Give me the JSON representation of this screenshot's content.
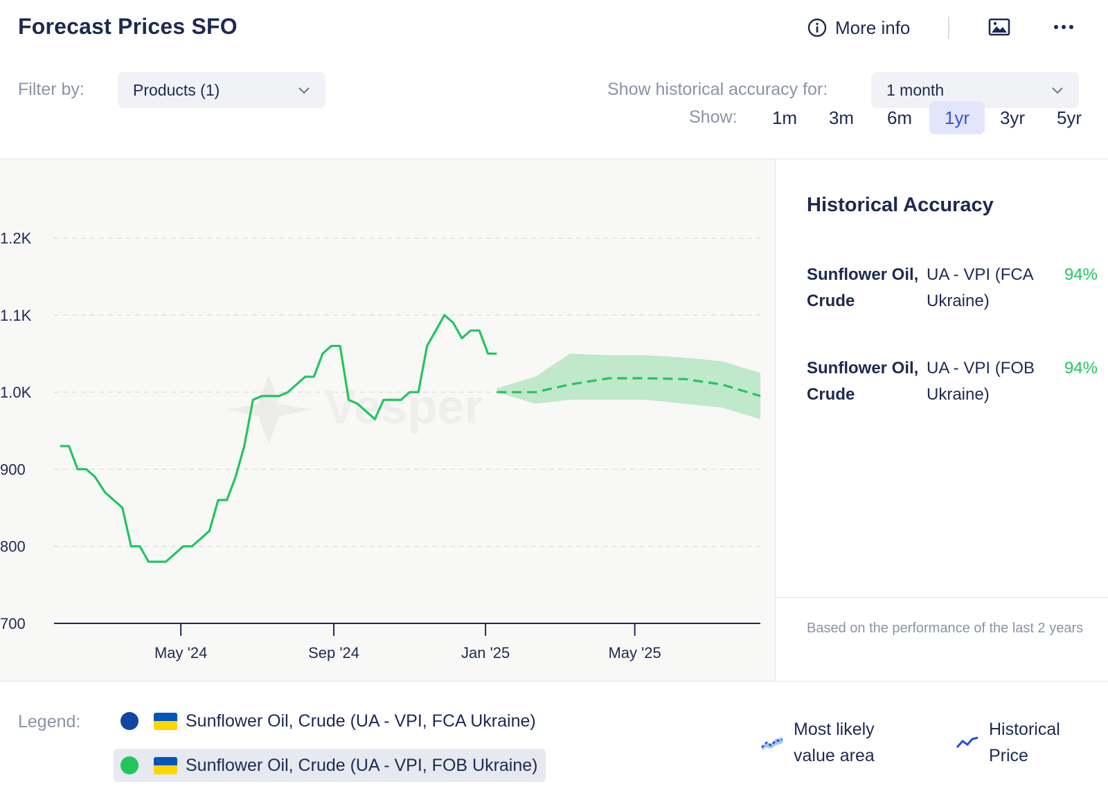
{
  "header": {
    "title": "Forecast Prices SFO",
    "more_info_label": "More info"
  },
  "filter": {
    "label": "Filter by:",
    "value": "Products (1)"
  },
  "accuracy_selector": {
    "label": "Show historical accuracy for:",
    "value": "1 month"
  },
  "range": {
    "label": "Show:",
    "options": [
      "1m",
      "3m",
      "6m",
      "1yr",
      "3yr",
      "5yr"
    ],
    "active": "1yr"
  },
  "side_panel": {
    "title": "Historical Accuracy",
    "rows": [
      {
        "name": "Sunflower Oil, Crude",
        "source": "UA - VPI (FCA Ukraine)",
        "accuracy": "94%"
      },
      {
        "name": "Sunflower Oil, Crude",
        "source": "UA - VPI (FOB Ukraine)",
        "accuracy": "94%"
      }
    ],
    "note": "Based on the performance of the last 2 years"
  },
  "legend": {
    "label": "Legend:",
    "items": [
      {
        "text": "Sunflower Oil, Crude (UA - VPI, FCA Ukraine)",
        "color": "#0f47a1",
        "highlighted": false
      },
      {
        "text": "Sunflower Oil, Crude (UA - VPI, FOB Ukraine)",
        "color": "#22c55e",
        "highlighted": true
      }
    ],
    "keys": {
      "forecast_area": "Most likely value area",
      "historical": "Historical Price"
    }
  },
  "colors": {
    "historical_line": "#22c55e",
    "forecast_band": "#b6e5c2",
    "accent": "#3b4ed8"
  },
  "chart_data": {
    "type": "line",
    "watermark": "Vesper",
    "ylim": [
      700,
      1250
    ],
    "yticks": [
      700,
      800,
      900,
      1000,
      1100,
      1200
    ],
    "ytick_labels": [
      "700",
      "800",
      "900",
      "1.0K",
      "1.1K",
      "1.2K"
    ],
    "xlim": [
      "2024-01-20",
      "2025-08-10"
    ],
    "xticks": [
      "2024-05-01",
      "2024-09-01",
      "2025-01-01",
      "2025-05-01"
    ],
    "xtick_labels": [
      "May '24",
      "Sep '24",
      "Jan '25",
      "May '25"
    ],
    "series": [
      {
        "name": "Sunflower Oil, Crude (UA - VPI, FOB Ukraine)",
        "kind": "historical",
        "x": [
          "2024-01-25",
          "2024-02-01",
          "2024-02-08",
          "2024-02-15",
          "2024-02-22",
          "2024-03-01",
          "2024-03-08",
          "2024-03-15",
          "2024-03-22",
          "2024-03-29",
          "2024-04-05",
          "2024-04-12",
          "2024-04-19",
          "2024-04-26",
          "2024-05-03",
          "2024-05-10",
          "2024-05-17",
          "2024-05-24",
          "2024-05-31",
          "2024-06-07",
          "2024-06-14",
          "2024-06-21",
          "2024-06-28",
          "2024-07-05",
          "2024-07-12",
          "2024-07-19",
          "2024-07-26",
          "2024-08-02",
          "2024-08-09",
          "2024-08-16",
          "2024-08-23",
          "2024-08-30",
          "2024-09-06",
          "2024-09-13",
          "2024-09-20",
          "2024-09-27",
          "2024-10-04",
          "2024-10-11",
          "2024-10-18",
          "2024-10-25",
          "2024-11-01",
          "2024-11-08",
          "2024-11-15",
          "2024-11-22",
          "2024-11-29",
          "2024-12-06",
          "2024-12-13",
          "2024-12-20",
          "2024-12-27",
          "2025-01-03",
          "2025-01-10"
        ],
        "values": [
          930,
          930,
          900,
          900,
          890,
          870,
          860,
          850,
          800,
          800,
          780,
          780,
          780,
          790,
          800,
          800,
          810,
          820,
          860,
          860,
          890,
          930,
          990,
          995,
          995,
          995,
          1000,
          1010,
          1020,
          1020,
          1050,
          1060,
          1060,
          990,
          985,
          975,
          965,
          990,
          990,
          990,
          1000,
          1000,
          1060,
          1080,
          1100,
          1090,
          1070,
          1080,
          1080,
          1050,
          1050
        ]
      },
      {
        "name": "Forecast (most likely)",
        "kind": "forecast",
        "x": [
          "2025-01-10",
          "2025-02-10",
          "2025-03-10",
          "2025-04-10",
          "2025-05-10",
          "2025-06-10",
          "2025-07-10",
          "2025-08-10"
        ],
        "values": [
          1000,
          1000,
          1010,
          1018,
          1018,
          1017,
          1010,
          995
        ],
        "lower": [
          1000,
          985,
          990,
          990,
          990,
          985,
          980,
          965
        ],
        "upper": [
          1005,
          1020,
          1050,
          1048,
          1048,
          1045,
          1040,
          1025
        ]
      }
    ]
  }
}
